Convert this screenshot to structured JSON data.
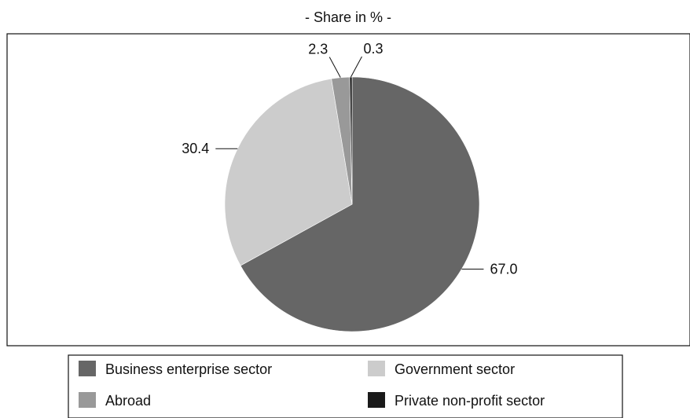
{
  "chart_data": {
    "type": "pie",
    "title": "- Share in % -",
    "slices": [
      {
        "label": "Business enterprise sector",
        "value": 67.0,
        "value_label": "67.0",
        "color": "#666666"
      },
      {
        "label": "Government sector",
        "value": 30.4,
        "value_label": "30.4",
        "color": "#cccccc"
      },
      {
        "label": "Abroad",
        "value": 2.3,
        "value_label": "2.3",
        "color": "#999999"
      },
      {
        "label": "Private non-profit sector",
        "value": 0.3,
        "value_label": "0.3",
        "color": "#1a1a1a"
      }
    ],
    "start_angle": "12 o'clock",
    "direction": "clockwise",
    "legend_position": "bottom",
    "legend_columns": 2
  }
}
